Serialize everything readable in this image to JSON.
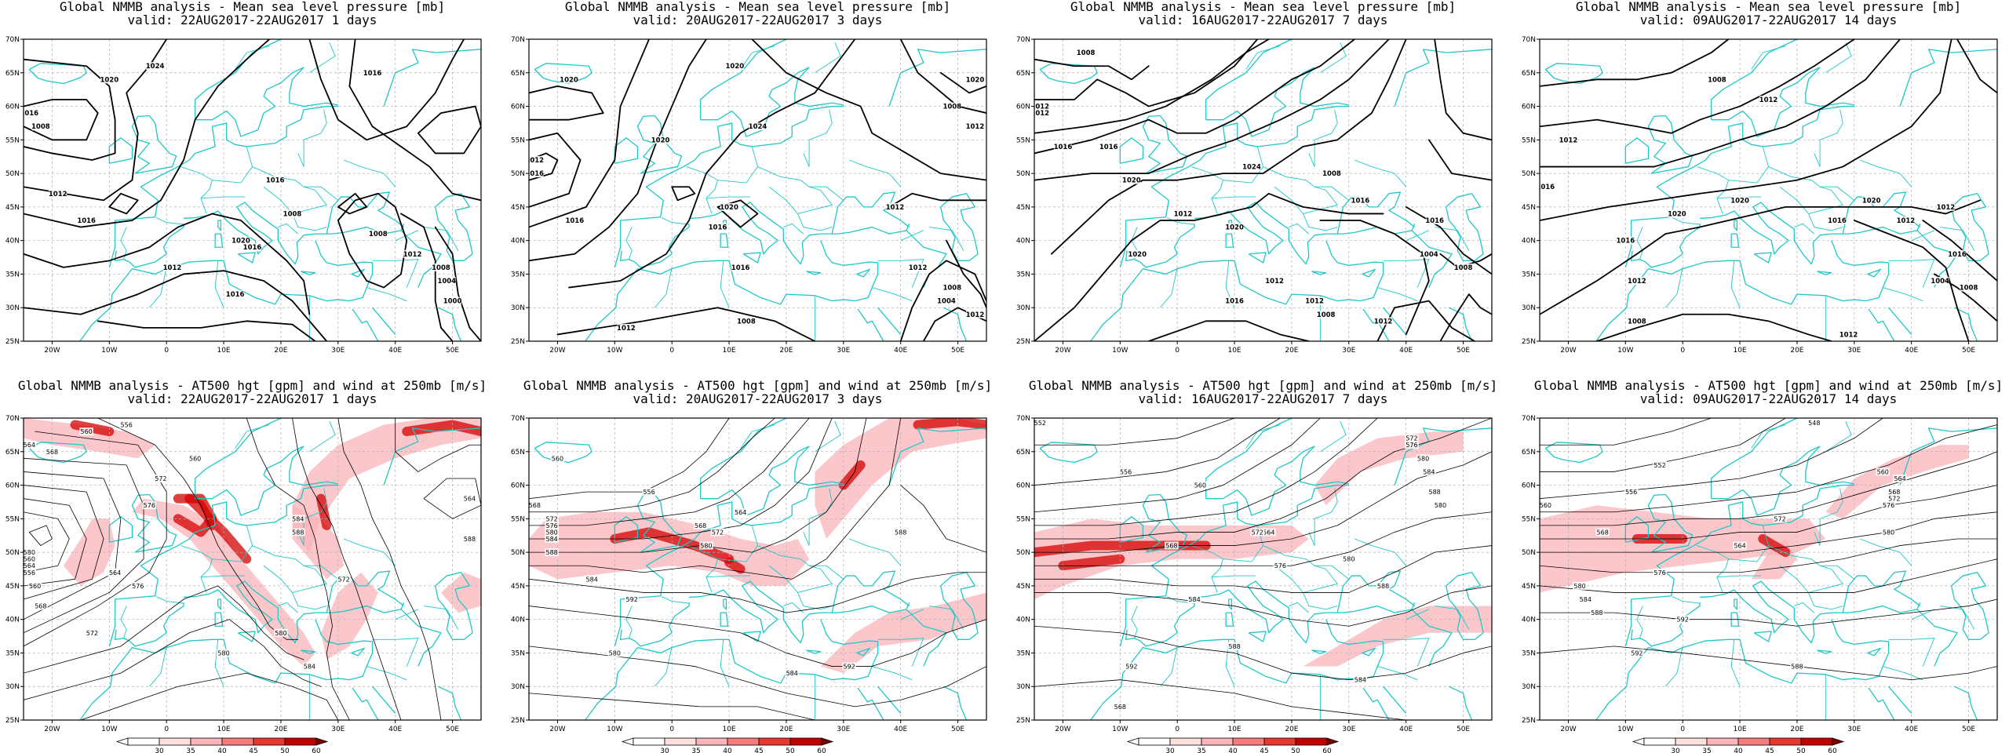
{
  "figure": {
    "lon_ticks": [
      "20W",
      "10W",
      "0",
      "10E",
      "20E",
      "30E",
      "40E",
      "50E"
    ],
    "lat_ticks": [
      "25N",
      "30N",
      "35N",
      "40N",
      "45N",
      "50N",
      "55N",
      "60N",
      "65N",
      "70N"
    ],
    "colorbar": {
      "labels": [
        "30",
        "35",
        "40",
        "45",
        "50",
        "60"
      ],
      "colors": [
        "#ffffff",
        "#fde0dd",
        "#fbb4b9",
        "#f77b7b",
        "#e8382e",
        "#c20000",
        "#7a0000"
      ]
    },
    "colors": {
      "coast": "#1fc7c7",
      "grid": "#b0b0b0",
      "contour": "#000000",
      "wind_low": "#fbb4b9",
      "wind_high": "#d40000"
    }
  },
  "panels": [
    {
      "row": "mslp",
      "title": "Global NMMB analysis - Mean sea level pressure [mb]",
      "subtitle": "valid: 22AUG2017-22AUG2017  1 days",
      "labels": [
        "1020",
        "1024",
        "1016",
        "1016",
        "1008",
        "1012",
        "1016",
        "1016",
        "1020",
        "1016",
        "1008",
        "1008",
        "1012",
        "1016",
        "1012",
        "1008",
        "1004",
        "1000"
      ]
    },
    {
      "row": "mslp",
      "title": "Global NMMB analysis - Mean sea level pressure [mb]",
      "subtitle": "valid: 20AUG2017-22AUG2017  3 days",
      "labels": [
        "1020",
        "1020",
        "1012",
        "1016",
        "1020",
        "1016",
        "1024",
        "1020",
        "1008",
        "1012",
        "1020",
        "1016",
        "1012",
        "1016",
        "1012",
        "1008",
        "1004",
        "1012",
        "1008",
        "1012"
      ]
    },
    {
      "row": "mslp",
      "title": "Global NMMB analysis - Mean sea level pressure [mb]",
      "subtitle": "valid: 16AUG2017-22AUG2017  7 days",
      "labels": [
        "1008",
        "1012",
        "1012",
        "1016",
        "1016",
        "1020",
        "1024",
        "1008",
        "1012",
        "1020",
        "1020",
        "1016",
        "1016",
        "1012",
        "1008",
        "1004",
        "1008",
        "1016",
        "1012",
        "1012"
      ]
    },
    {
      "row": "mslp",
      "title": "Global NMMB analysis - Mean sea level pressure [mb]",
      "subtitle": "valid: 09AUG2017-22AUG2017  14 days",
      "labels": [
        "1008",
        "1012",
        "1012",
        "1016",
        "1020",
        "1020",
        "1016",
        "1016",
        "1020",
        "1012",
        "1016",
        "1008",
        "1004",
        "1012",
        "1008",
        "1012",
        "1012"
      ]
    },
    {
      "row": "z500",
      "title": "Global NMMB analysis - AT500 hgt [gpm] and wind at 250mb [m/s]",
      "subtitle": "valid: 22AUG2017-22AUG2017  1 days",
      "labels": [
        "556",
        "560",
        "564",
        "568",
        "572",
        "576",
        "580",
        "560",
        "564",
        "556",
        "560",
        "564",
        "568",
        "572",
        "576",
        "580",
        "584",
        "588",
        "572",
        "580",
        "584",
        "560",
        "564",
        "588"
      ]
    },
    {
      "row": "z500",
      "title": "Global NMMB analysis - AT500 hgt [gpm] and wind at 250mb [m/s]",
      "subtitle": "valid: 20AUG2017-22AUG2017  3 days",
      "labels": [
        "560",
        "556",
        "568",
        "572",
        "576",
        "580",
        "584",
        "588",
        "564",
        "568",
        "572",
        "580",
        "584",
        "592",
        "588",
        "580",
        "584",
        "592"
      ]
    },
    {
      "row": "z500",
      "title": "Global NMMB analysis - AT500 hgt [gpm] and wind at 250mb [m/s]",
      "subtitle": "valid: 16AUG2017-22AUG2017  7 days",
      "labels": [
        "552",
        "556",
        "560",
        "564",
        "568",
        "572",
        "576",
        "580",
        "584",
        "588",
        "592",
        "568",
        "572",
        "576",
        "580",
        "584",
        "588",
        "580",
        "588",
        "584"
      ]
    },
    {
      "row": "z500",
      "title": "Global NMMB analysis - AT500 hgt [gpm] and wind at 250mb [m/s]",
      "subtitle": "valid: 09AUG2017-22AUG2017  14 days",
      "labels": [
        "548",
        "552",
        "556",
        "560",
        "564",
        "568",
        "572",
        "576",
        "580",
        "584",
        "588",
        "592",
        "560",
        "564",
        "568",
        "572",
        "576",
        "580",
        "588",
        "592"
      ]
    }
  ]
}
